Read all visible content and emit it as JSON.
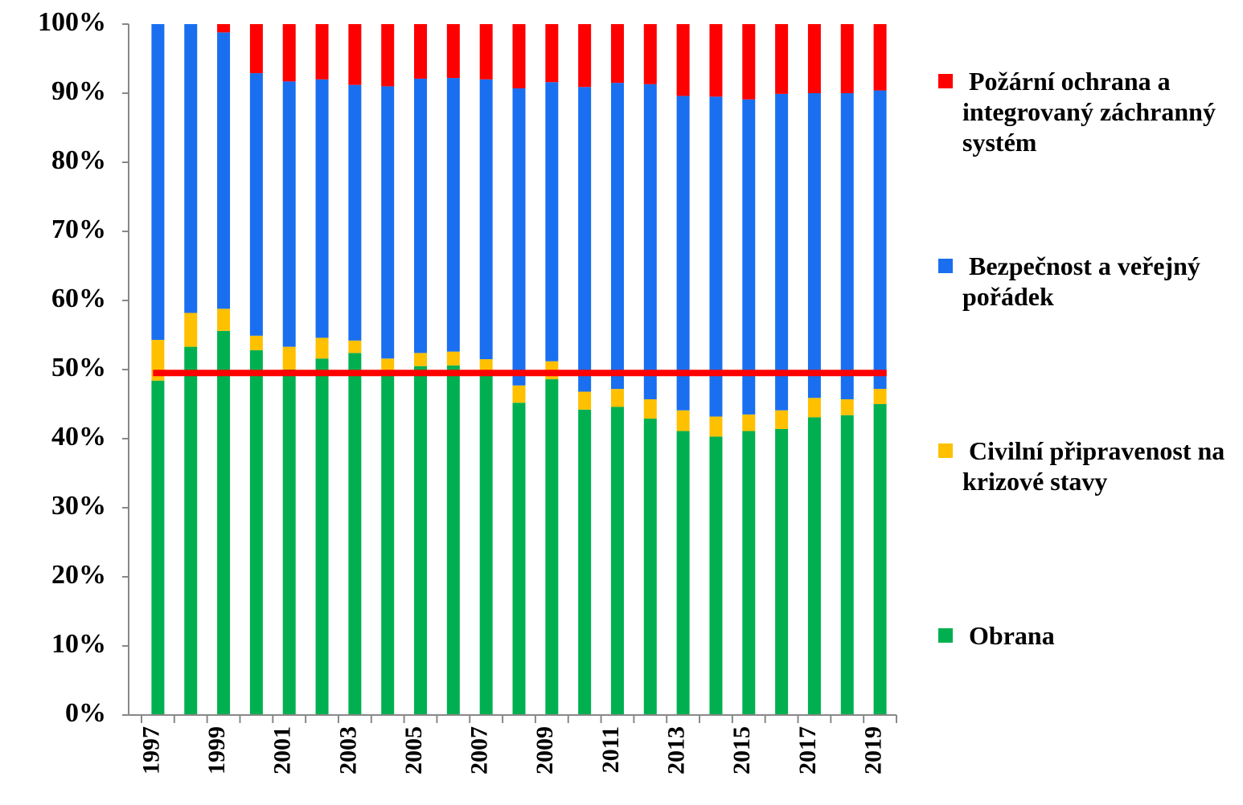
{
  "chart_data": {
    "type": "stacked_bar",
    "categories": [
      "1997",
      null,
      "1999",
      null,
      "2001",
      null,
      "2003",
      null,
      "2005",
      null,
      "2007",
      null,
      "2009",
      null,
      "2011",
      null,
      "2013",
      null,
      "2015",
      null,
      "2017",
      null,
      "2019"
    ],
    "series": [
      {
        "name": "Obrana",
        "color": "#00b050",
        "values": [
          48.4,
          53.3,
          55.6,
          52.8,
          50.0,
          51.6,
          52.4,
          49.4,
          50.5,
          50.6,
          49.8,
          45.2,
          48.6,
          44.2,
          44.6,
          42.9,
          41.1,
          40.3,
          41.1,
          41.4,
          43.1,
          43.4,
          45.0
        ]
      },
      {
        "name": "Civilní připravenost na krizové stavy",
        "color": "#ffc000",
        "values": [
          5.9,
          4.9,
          3.2,
          2.1,
          3.3,
          3.0,
          1.8,
          2.2,
          1.9,
          2.0,
          1.7,
          2.5,
          2.6,
          2.6,
          2.6,
          2.8,
          3.0,
          2.9,
          2.4,
          2.7,
          2.8,
          2.3,
          2.2
        ]
      },
      {
        "name": "Bezpečnost a veřejný pořádek",
        "color": "#1a6ff0",
        "values": [
          45.7,
          41.8,
          40.0,
          38.0,
          38.4,
          37.4,
          37.0,
          39.4,
          39.7,
          39.6,
          40.5,
          43.0,
          40.4,
          44.1,
          44.3,
          45.6,
          45.5,
          46.3,
          45.6,
          45.8,
          44.1,
          44.3,
          43.2
        ]
      },
      {
        "name": "Požární ochrana a integrovaný záchranný systém",
        "color": "#ff0000",
        "values": [
          0,
          0,
          1.2,
          7.1,
          8.3,
          8.0,
          8.8,
          9.0,
          7.9,
          7.8,
          8.0,
          9.3,
          8.4,
          9.1,
          8.5,
          8.7,
          10.4,
          10.5,
          10.9,
          10.1,
          10.0,
          10.0,
          9.6
        ]
      }
    ],
    "ylim": [
      0,
      100
    ],
    "yticks": [
      {
        "value": 0,
        "label": "0%"
      },
      {
        "value": 10,
        "label": "10%"
      },
      {
        "value": 20,
        "label": "20%"
      },
      {
        "value": 30,
        "label": "30%"
      },
      {
        "value": 40,
        "label": "40%"
      },
      {
        "value": 50,
        "label": "50%"
      },
      {
        "value": 60,
        "label": "60%"
      },
      {
        "value": 70,
        "label": "70%"
      },
      {
        "value": 80,
        "label": "80%"
      },
      {
        "value": 90,
        "label": "90%"
      },
      {
        "value": 100,
        "label": "100%"
      }
    ],
    "reference_line": {
      "value": 49.5,
      "color": "#ff0000"
    },
    "legend": "right"
  }
}
